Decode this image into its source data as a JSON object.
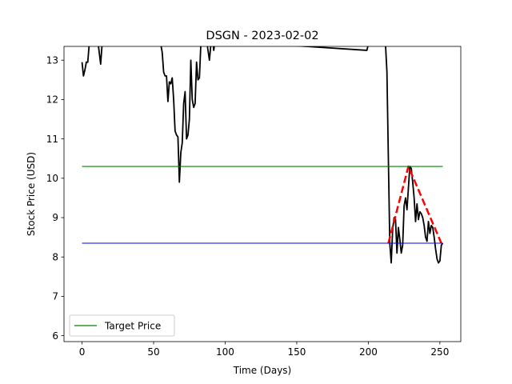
{
  "chart_data": {
    "type": "line",
    "title": "DSGN - 2023-02-02",
    "xlabel": "Time (Days)",
    "ylabel": "Stock Price (USD)",
    "xlim": [
      -12.6,
      264.6
    ],
    "ylim": [
      5.85,
      13.35
    ],
    "xticks": [
      0,
      50,
      100,
      150,
      200,
      250
    ],
    "yticks": [
      6,
      7,
      8,
      9,
      10,
      11,
      12,
      13
    ],
    "grid": false,
    "legend": {
      "position": "lower-left",
      "entries": [
        "Target Price"
      ]
    },
    "series": [
      {
        "name": "price",
        "color": "#000000",
        "style": "solid",
        "x": [
          0,
          1,
          2,
          3,
          4,
          5,
          6,
          7,
          8,
          9,
          10,
          11,
          12,
          13,
          14,
          15,
          53,
          54,
          55,
          56,
          57,
          58,
          59,
          60,
          61,
          62,
          63,
          64,
          65,
          66,
          67,
          68,
          69,
          70,
          71,
          72,
          73,
          74,
          75,
          76,
          77,
          78,
          79,
          80,
          81,
          82,
          83,
          84,
          85,
          86,
          87,
          88,
          89,
          90,
          91,
          92,
          93,
          199,
          200,
          201,
          211,
          212,
          213,
          214,
          215,
          216,
          217,
          218,
          219,
          220,
          221,
          222,
          223,
          224,
          225,
          226,
          227,
          228,
          229,
          230,
          231,
          232,
          233,
          234,
          235,
          236,
          237,
          238,
          239,
          240,
          241,
          242,
          243,
          244,
          245,
          246,
          247,
          248,
          249,
          250,
          251,
          252
        ],
        "y": [
          12.95,
          12.6,
          12.75,
          12.95,
          12.95,
          13.4,
          13.6,
          13.8,
          13.9,
          13.9,
          13.7,
          13.5,
          13.2,
          12.9,
          13.4,
          13.6,
          13.8,
          13.6,
          13.4,
          13.2,
          12.7,
          12.6,
          12.6,
          11.95,
          12.45,
          12.4,
          12.55,
          12.0,
          11.2,
          11.1,
          11.05,
          9.9,
          10.65,
          10.9,
          11.9,
          12.2,
          11.0,
          11.1,
          11.5,
          13.0,
          12.0,
          11.8,
          11.9,
          12.95,
          12.5,
          12.55,
          13.4,
          13.6,
          13.8,
          13.7,
          13.5,
          13.25,
          13.0,
          13.4,
          13.6,
          13.25,
          13.5,
          13.25,
          13.4,
          13.6,
          13.6,
          13.4,
          12.7,
          10.5,
          8.35,
          7.85,
          8.7,
          9.0,
          8.95,
          8.1,
          8.75,
          8.45,
          8.1,
          8.3,
          9.3,
          9.5,
          9.2,
          9.75,
          10.3,
          10.25,
          9.9,
          9.5,
          8.9,
          9.35,
          8.95,
          9.15,
          9.1,
          9.0,
          8.8,
          8.5,
          8.4,
          8.9,
          8.6,
          8.8,
          8.75,
          8.5,
          8.2,
          7.95,
          7.85,
          7.9,
          8.3,
          8.35
        ]
      },
      {
        "name": "trend",
        "color": "#ff0000",
        "style": "dashed",
        "x": [
          214,
          228,
          251
        ],
        "y": [
          8.35,
          10.3,
          8.35
        ]
      },
      {
        "name": "Target Price",
        "color": "#008000",
        "style": "solid",
        "x": [
          0,
          252
        ],
        "y": [
          10.3,
          10.3
        ]
      },
      {
        "name": "support",
        "color": "#0000ff",
        "style": "solid",
        "x": [
          0,
          252
        ],
        "y": [
          8.35,
          8.35
        ]
      }
    ]
  }
}
